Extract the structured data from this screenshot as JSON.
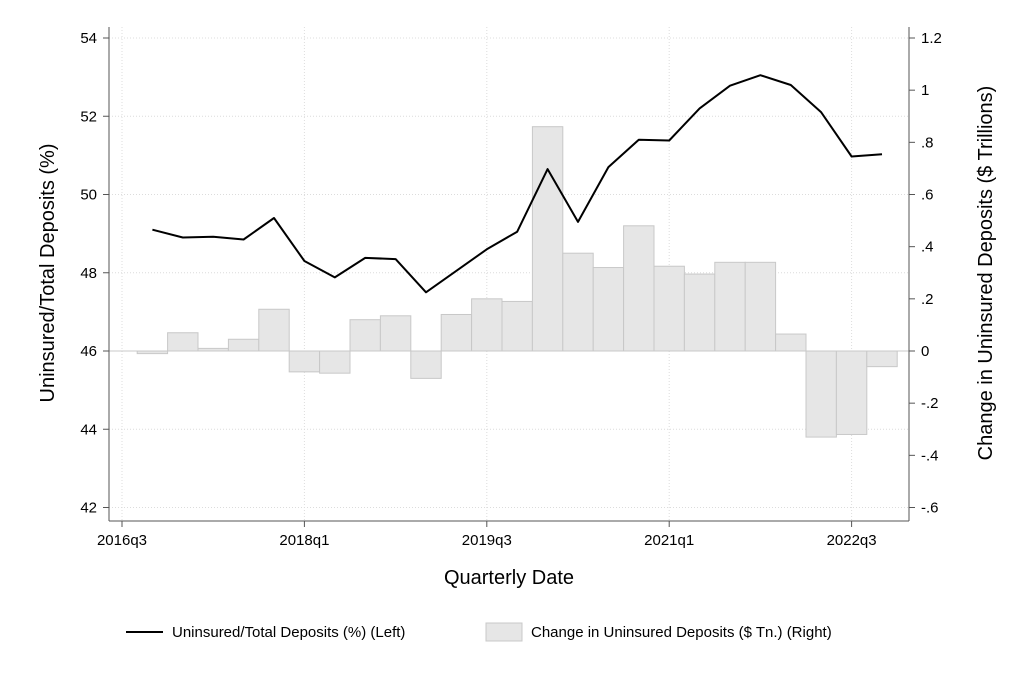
{
  "chart_data": {
    "type": "bar+line",
    "xlabel": "Quarterly Date",
    "ylabel_left": "Uninsured/Total Deposits (%)",
    "ylabel_right": "Change in Uninsured Deposits ($ Trillions)",
    "x_ticks": [
      "2016q3",
      "2018q1",
      "2019q3",
      "2021q1",
      "2022q3"
    ],
    "y_left_ticks": [
      "42",
      "44",
      "46",
      "48",
      "50",
      "52",
      "54"
    ],
    "y_right_ticks": [
      "-.6",
      "-.4",
      "-.2",
      "0",
      ".2",
      ".4",
      ".6",
      ".8",
      "1",
      "1.2"
    ],
    "ylim_left": [
      42,
      54
    ],
    "ylim_right": [
      -0.6,
      1.2
    ],
    "grid": true,
    "legend_position": "bottom",
    "quarters": [
      "2016q4",
      "2017q1",
      "2017q2",
      "2017q3",
      "2017q4",
      "2018q1",
      "2018q2",
      "2018q3",
      "2018q4",
      "2019q1",
      "2019q2",
      "2019q3",
      "2019q4",
      "2020q1",
      "2020q2",
      "2020q3",
      "2020q4",
      "2021q1",
      "2021q2",
      "2021q3",
      "2021q4",
      "2022q1",
      "2022q2",
      "2022q3",
      "2022q4"
    ],
    "series": [
      {
        "name": "Uninsured/Total Deposits (%) (Left)",
        "type": "line",
        "axis": "left",
        "x": [
          "2016q4",
          "2017q1",
          "2017q2",
          "2017q3",
          "2017q4",
          "2018q1",
          "2018q2",
          "2018q3",
          "2018q4",
          "2019q1",
          "2019q2",
          "2019q3",
          "2019q4",
          "2020q1",
          "2020q2",
          "2020q3",
          "2020q4",
          "2021q1",
          "2021q2",
          "2021q3",
          "2021q4",
          "2022q1",
          "2022q2",
          "2022q3",
          "2022q4"
        ],
        "values": [
          49.1,
          48.9,
          48.92,
          48.85,
          49.4,
          48.3,
          47.88,
          48.38,
          48.35,
          47.5,
          48.05,
          48.6,
          49.05,
          50.65,
          49.3,
          50.7,
          51.4,
          51.38,
          52.2,
          52.78,
          53.05,
          52.8,
          52.1,
          50.97,
          51.03
        ]
      },
      {
        "name": "Change in Uninsured Deposits ($ Tn.) (Right)",
        "type": "bar",
        "axis": "right",
        "color": "#e6e6e6",
        "x": [
          "2016q4",
          "2017q1",
          "2017q2",
          "2017q3",
          "2017q4",
          "2018q1",
          "2018q2",
          "2018q3",
          "2018q4",
          "2019q1",
          "2019q2",
          "2019q3",
          "2019q4",
          "2020q1",
          "2020q2",
          "2020q3",
          "2020q4",
          "2021q1",
          "2021q2",
          "2021q3",
          "2021q4",
          "2022q1",
          "2022q2",
          "2022q3",
          "2022q4"
        ],
        "values": [
          -0.01,
          0.07,
          0.01,
          0.045,
          0.16,
          -0.08,
          -0.085,
          0.12,
          0.135,
          -0.105,
          0.14,
          0.2,
          0.19,
          0.86,
          0.375,
          0.32,
          0.48,
          0.325,
          0.295,
          0.34,
          0.34,
          0.065,
          -0.33,
          -0.32,
          -0.06
        ]
      }
    ]
  }
}
